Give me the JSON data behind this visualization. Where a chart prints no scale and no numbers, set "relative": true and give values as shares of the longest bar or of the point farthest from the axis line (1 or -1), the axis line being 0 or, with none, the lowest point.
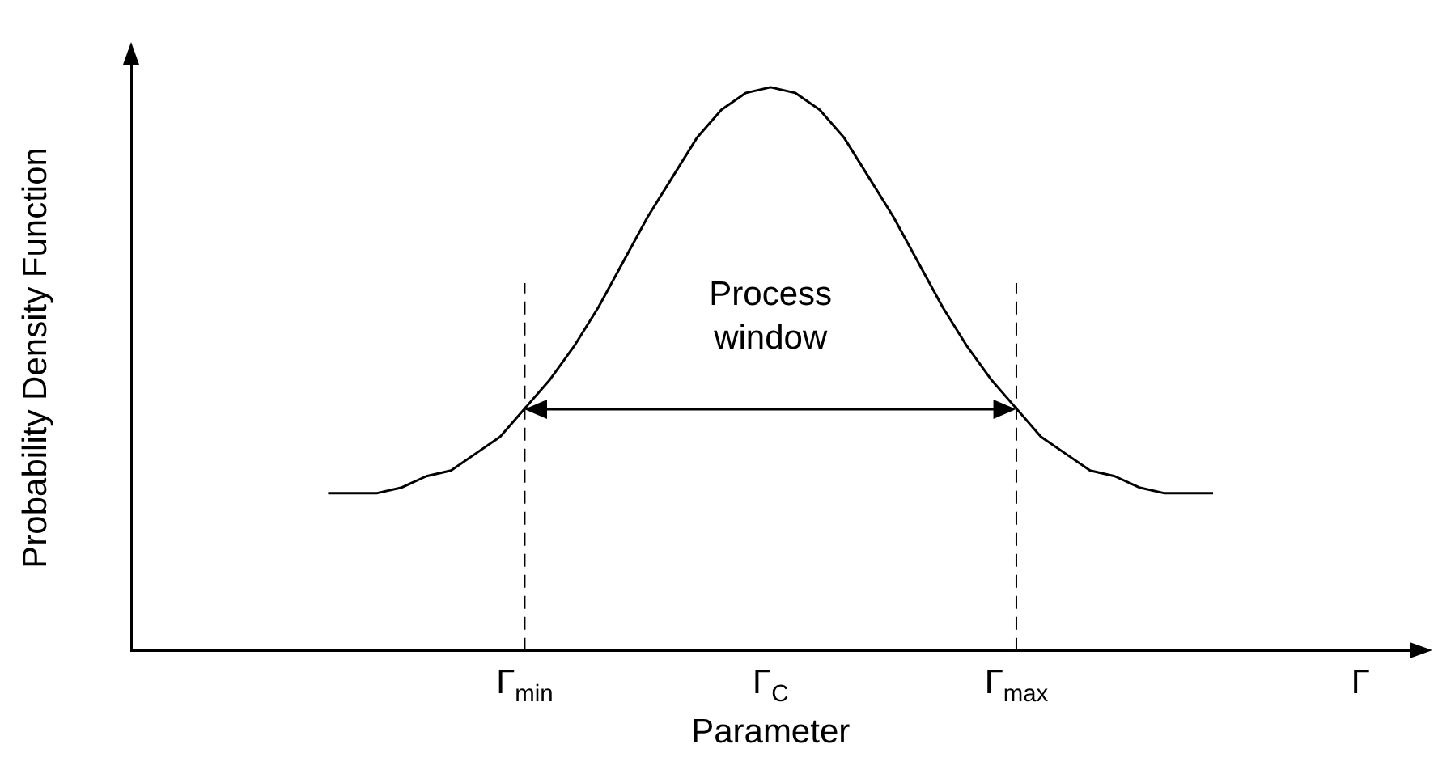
{
  "chart_data": {
    "type": "line",
    "relative": true,
    "xlabel": "Parameter",
    "ylabel": "Probability Density Function",
    "categories": [
      null,
      null,
      null,
      null,
      null,
      null,
      null,
      null,
      null,
      null,
      null,
      null,
      null,
      null,
      null,
      null,
      "Γ$_{min}$",
      null,
      null,
      null,
      null,
      null,
      null,
      null,
      null,
      null,
      "Γ$_{C}$",
      null,
      null,
      null,
      null,
      null,
      null,
      null,
      null,
      null,
      "Γ$_{max}$",
      null,
      null,
      null,
      null,
      null,
      null,
      null,
      null,
      null,
      null,
      null,
      null,
      null,
      "Γ",
      null,
      null
    ],
    "series": [
      {
        "color": "#000000",
        "values": [
          null,
          null,
          null,
          null,
          null,
          null,
          null,
          null,
          0.28,
          0.28,
          0.28,
          0.29,
          0.31,
          0.32,
          0.35,
          0.38,
          0.43,
          0.48,
          0.54,
          0.61,
          0.69,
          0.77,
          0.84,
          0.91,
          0.96,
          0.99,
          1.0,
          0.99,
          0.96,
          0.91,
          0.84,
          0.77,
          0.69,
          0.61,
          0.54,
          0.48,
          0.43,
          0.38,
          0.35,
          0.32,
          0.31,
          0.29,
          0.28,
          0.28,
          0.28,
          null,
          null,
          null,
          null,
          null,
          null,
          null,
          null
        ]
      }
    ],
    "ref_lines": [
      {
        "axis": "x",
        "value": "Γ$_{min}$",
        "line_style": "dashed",
        "color": "#000000"
      },
      {
        "axis": "x",
        "value": "Γ$_{max}$",
        "line_style": "dashed",
        "color": "#000000"
      }
    ],
    "annotations": [
      "Process window"
    ],
    "grid": false,
    "legend": false,
    "marker": "none",
    "line_style": "solid"
  }
}
